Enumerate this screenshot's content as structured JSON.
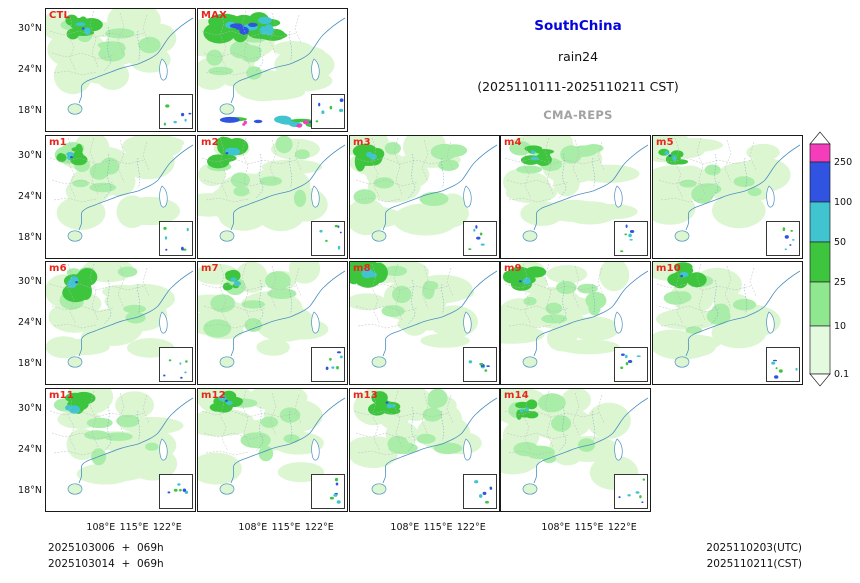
{
  "title": {
    "region": "SouthChina",
    "variable": "rain24",
    "period": "(2025110111-2025110211 CST)",
    "model": "CMA-REPS"
  },
  "axes": {
    "y_ticks": [
      "30°N",
      "24°N",
      "18°N"
    ],
    "x_ticks": [
      "108°E",
      "115°E",
      "122°E"
    ]
  },
  "panels": [
    {
      "label": "CTL",
      "row": 0,
      "col": 0,
      "variant": "ctl"
    },
    {
      "label": "MAX",
      "row": 0,
      "col": 1,
      "variant": "max"
    },
    {
      "label": "m1",
      "row": 1,
      "col": 0,
      "variant": "member"
    },
    {
      "label": "m2",
      "row": 1,
      "col": 1,
      "variant": "member"
    },
    {
      "label": "m3",
      "row": 1,
      "col": 2,
      "variant": "member"
    },
    {
      "label": "m4",
      "row": 1,
      "col": 3,
      "variant": "member"
    },
    {
      "label": "m5",
      "row": 1,
      "col": 4,
      "variant": "member"
    },
    {
      "label": "m6",
      "row": 2,
      "col": 0,
      "variant": "member"
    },
    {
      "label": "m7",
      "row": 2,
      "col": 1,
      "variant": "member"
    },
    {
      "label": "m8",
      "row": 2,
      "col": 2,
      "variant": "member"
    },
    {
      "label": "m9",
      "row": 2,
      "col": 3,
      "variant": "member"
    },
    {
      "label": "m10",
      "row": 2,
      "col": 4,
      "variant": "member"
    },
    {
      "label": "m11",
      "row": 3,
      "col": 0,
      "variant": "member"
    },
    {
      "label": "m12",
      "row": 3,
      "col": 1,
      "variant": "member"
    },
    {
      "label": "m13",
      "row": 3,
      "col": 2,
      "variant": "member"
    },
    {
      "label": "m14",
      "row": 3,
      "col": 3,
      "variant": "member"
    }
  ],
  "colorbar": {
    "over_color": "#ffffff",
    "under_color": "#ffffff",
    "segments": [
      {
        "color": "#f53dbb",
        "label": "250"
      },
      {
        "color": "#3053e1",
        "label": "100"
      },
      {
        "color": "#40c4cf",
        "label": "50"
      },
      {
        "color": "#3dc53d",
        "label": "25"
      },
      {
        "color": "#8fe78f",
        "label": "10"
      },
      {
        "color": "#e4fadf",
        "label": "0.1"
      }
    ]
  },
  "map_colors": {
    "pale": "#dcf6d2",
    "light": "#a9eda9",
    "green": "#3dc53d",
    "cyan": "#40c4cf",
    "blue": "#3053e1",
    "magenta": "#f53dbb",
    "coast": "#4a8fc0",
    "border": "#b9b9b9"
  },
  "footer": {
    "init_line1": "2025103006  +  069h",
    "init_line2": "2025103014  +  069h",
    "valid_utc": "2025110203(UTC)",
    "valid_cst": "2025110211(CST)"
  }
}
